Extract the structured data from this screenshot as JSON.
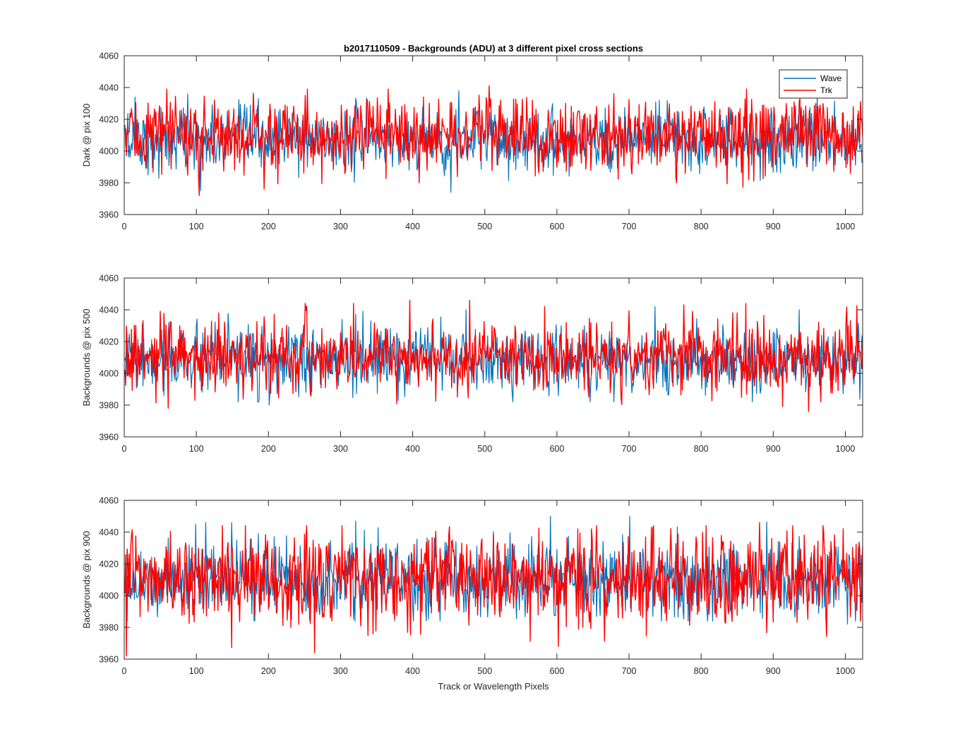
{
  "title": "b2017110509 - Backgrounds (ADU) at 3 different pixel cross sections",
  "xlabel": "Track or Wavelength Pixels",
  "legend": [
    {
      "label": "Wave",
      "color": "#0072BD"
    },
    {
      "label": "Trk",
      "color": "#FF0000"
    }
  ],
  "chart_data": [
    {
      "type": "line",
      "ylabel": "Dark @ pix 100",
      "xlim": [
        0,
        1024
      ],
      "ylim": [
        3960,
        4060
      ],
      "xticks": [
        0,
        100,
        200,
        300,
        400,
        500,
        600,
        700,
        800,
        900,
        1000
      ],
      "yticks": [
        3960,
        3980,
        4000,
        4020,
        4040,
        4060
      ],
      "legend_position": "top-right",
      "series": [
        {
          "name": "Wave",
          "color": "#0072BD",
          "n_points": 1024,
          "mean": 4007,
          "min": 3974,
          "max": 4038,
          "notable_points": [
            [
              14,
              4034
            ],
            [
              87,
              4036
            ],
            [
              105,
              3975
            ],
            [
              452,
              3974
            ],
            [
              463,
              4038
            ],
            [
              960,
              4035
            ]
          ]
        },
        {
          "name": "Trk",
          "color": "#FF0000",
          "n_points": 1024,
          "mean": 4010,
          "min": 3972,
          "max": 4041,
          "notable_points": [
            [
              103,
              3972
            ],
            [
              193,
              3976
            ],
            [
              250,
              4035
            ],
            [
              365,
              4039
            ],
            [
              408,
              3980
            ],
            [
              505,
              4041
            ],
            [
              765,
              3980
            ],
            [
              1010,
              4028
            ]
          ]
        }
      ]
    },
    {
      "type": "line",
      "ylabel": "Backgrounds @ pix 500",
      "xlim": [
        0,
        1024
      ],
      "ylim": [
        3960,
        4060
      ],
      "xticks": [
        0,
        100,
        200,
        300,
        400,
        500,
        600,
        700,
        800,
        900,
        1000
      ],
      "yticks": [
        3960,
        3980,
        4000,
        4020,
        4040,
        4060
      ],
      "series": [
        {
          "name": "Wave",
          "color": "#0072BD",
          "n_points": 1024,
          "mean": 4008,
          "min": 3980,
          "max": 4042,
          "notable_points": [
            [
              200,
              3980
            ],
            [
              330,
              4039
            ],
            [
              645,
              3982
            ],
            [
              735,
              4042
            ],
            [
              870,
              3982
            ]
          ]
        },
        {
          "name": "Trk",
          "color": "#FF0000",
          "n_points": 1024,
          "mean": 4010,
          "min": 3976,
          "max": 4046,
          "notable_points": [
            [
              60,
              3978
            ],
            [
              130,
              4038
            ],
            [
              395,
              4046
            ],
            [
              478,
              4046
            ],
            [
              775,
              4043
            ],
            [
              948,
              3976
            ]
          ]
        }
      ]
    },
    {
      "type": "line",
      "ylabel": "Backgrounds @ pix 900",
      "xlim": [
        0,
        1024
      ],
      "ylim": [
        3960,
        4060
      ],
      "xticks": [
        0,
        100,
        200,
        300,
        400,
        500,
        600,
        700,
        800,
        900,
        1000
      ],
      "yticks": [
        3960,
        3980,
        4000,
        4020,
        4040,
        4060
      ],
      "series": [
        {
          "name": "Wave",
          "color": "#0072BD",
          "n_points": 1024,
          "mean": 4010,
          "min": 3982,
          "max": 4050,
          "notable_points": [
            [
              98,
              4045
            ],
            [
              112,
              4046
            ],
            [
              590,
              4050
            ],
            [
              700,
              4050
            ],
            [
              1002,
              3982
            ]
          ]
        },
        {
          "name": "Trk",
          "color": "#FF0000",
          "n_points": 1024,
          "mean": 4011,
          "min": 3962,
          "max": 4046,
          "notable_points": [
            [
              2,
              3962
            ],
            [
              230,
              3980
            ],
            [
              635,
              3980
            ],
            [
              730,
              4043
            ],
            [
              880,
              4046
            ]
          ]
        }
      ]
    }
  ]
}
